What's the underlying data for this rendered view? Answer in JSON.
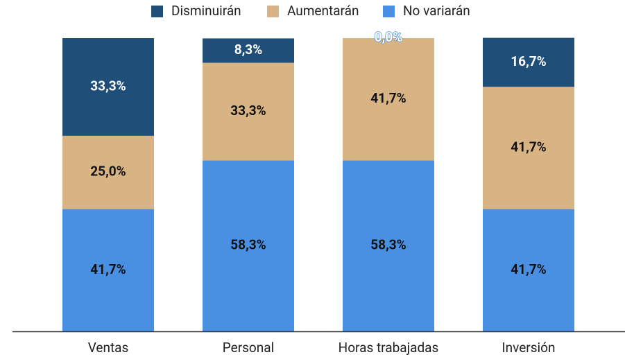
{
  "chart_data": {
    "type": "stacked_bar",
    "categories": [
      "Ventas",
      "Personal",
      "Horas trabajadas",
      "Inversión"
    ],
    "series": [
      {
        "name": "Disminuirán",
        "color": "#1f4e79",
        "values": [
          33.3,
          8.3,
          0.0,
          16.7
        ],
        "value_labels": [
          "33,3%",
          "8,3%",
          "0,0%",
          "16,7%"
        ]
      },
      {
        "name": "Aumentarán",
        "color": "#d8b383",
        "values": [
          25.0,
          33.3,
          41.7,
          41.7
        ],
        "value_labels": [
          "25,0%",
          "33,3%",
          "41,7%",
          "41,7%"
        ]
      },
      {
        "name": "No variarán",
        "color": "#4a90e2",
        "values": [
          41.7,
          58.3,
          58.3,
          41.7
        ],
        "value_labels": [
          "41,7%",
          "58,3%",
          "58,3%",
          "41,7%"
        ]
      }
    ],
    "ylim": [
      0,
      100
    ],
    "legend": "top"
  }
}
